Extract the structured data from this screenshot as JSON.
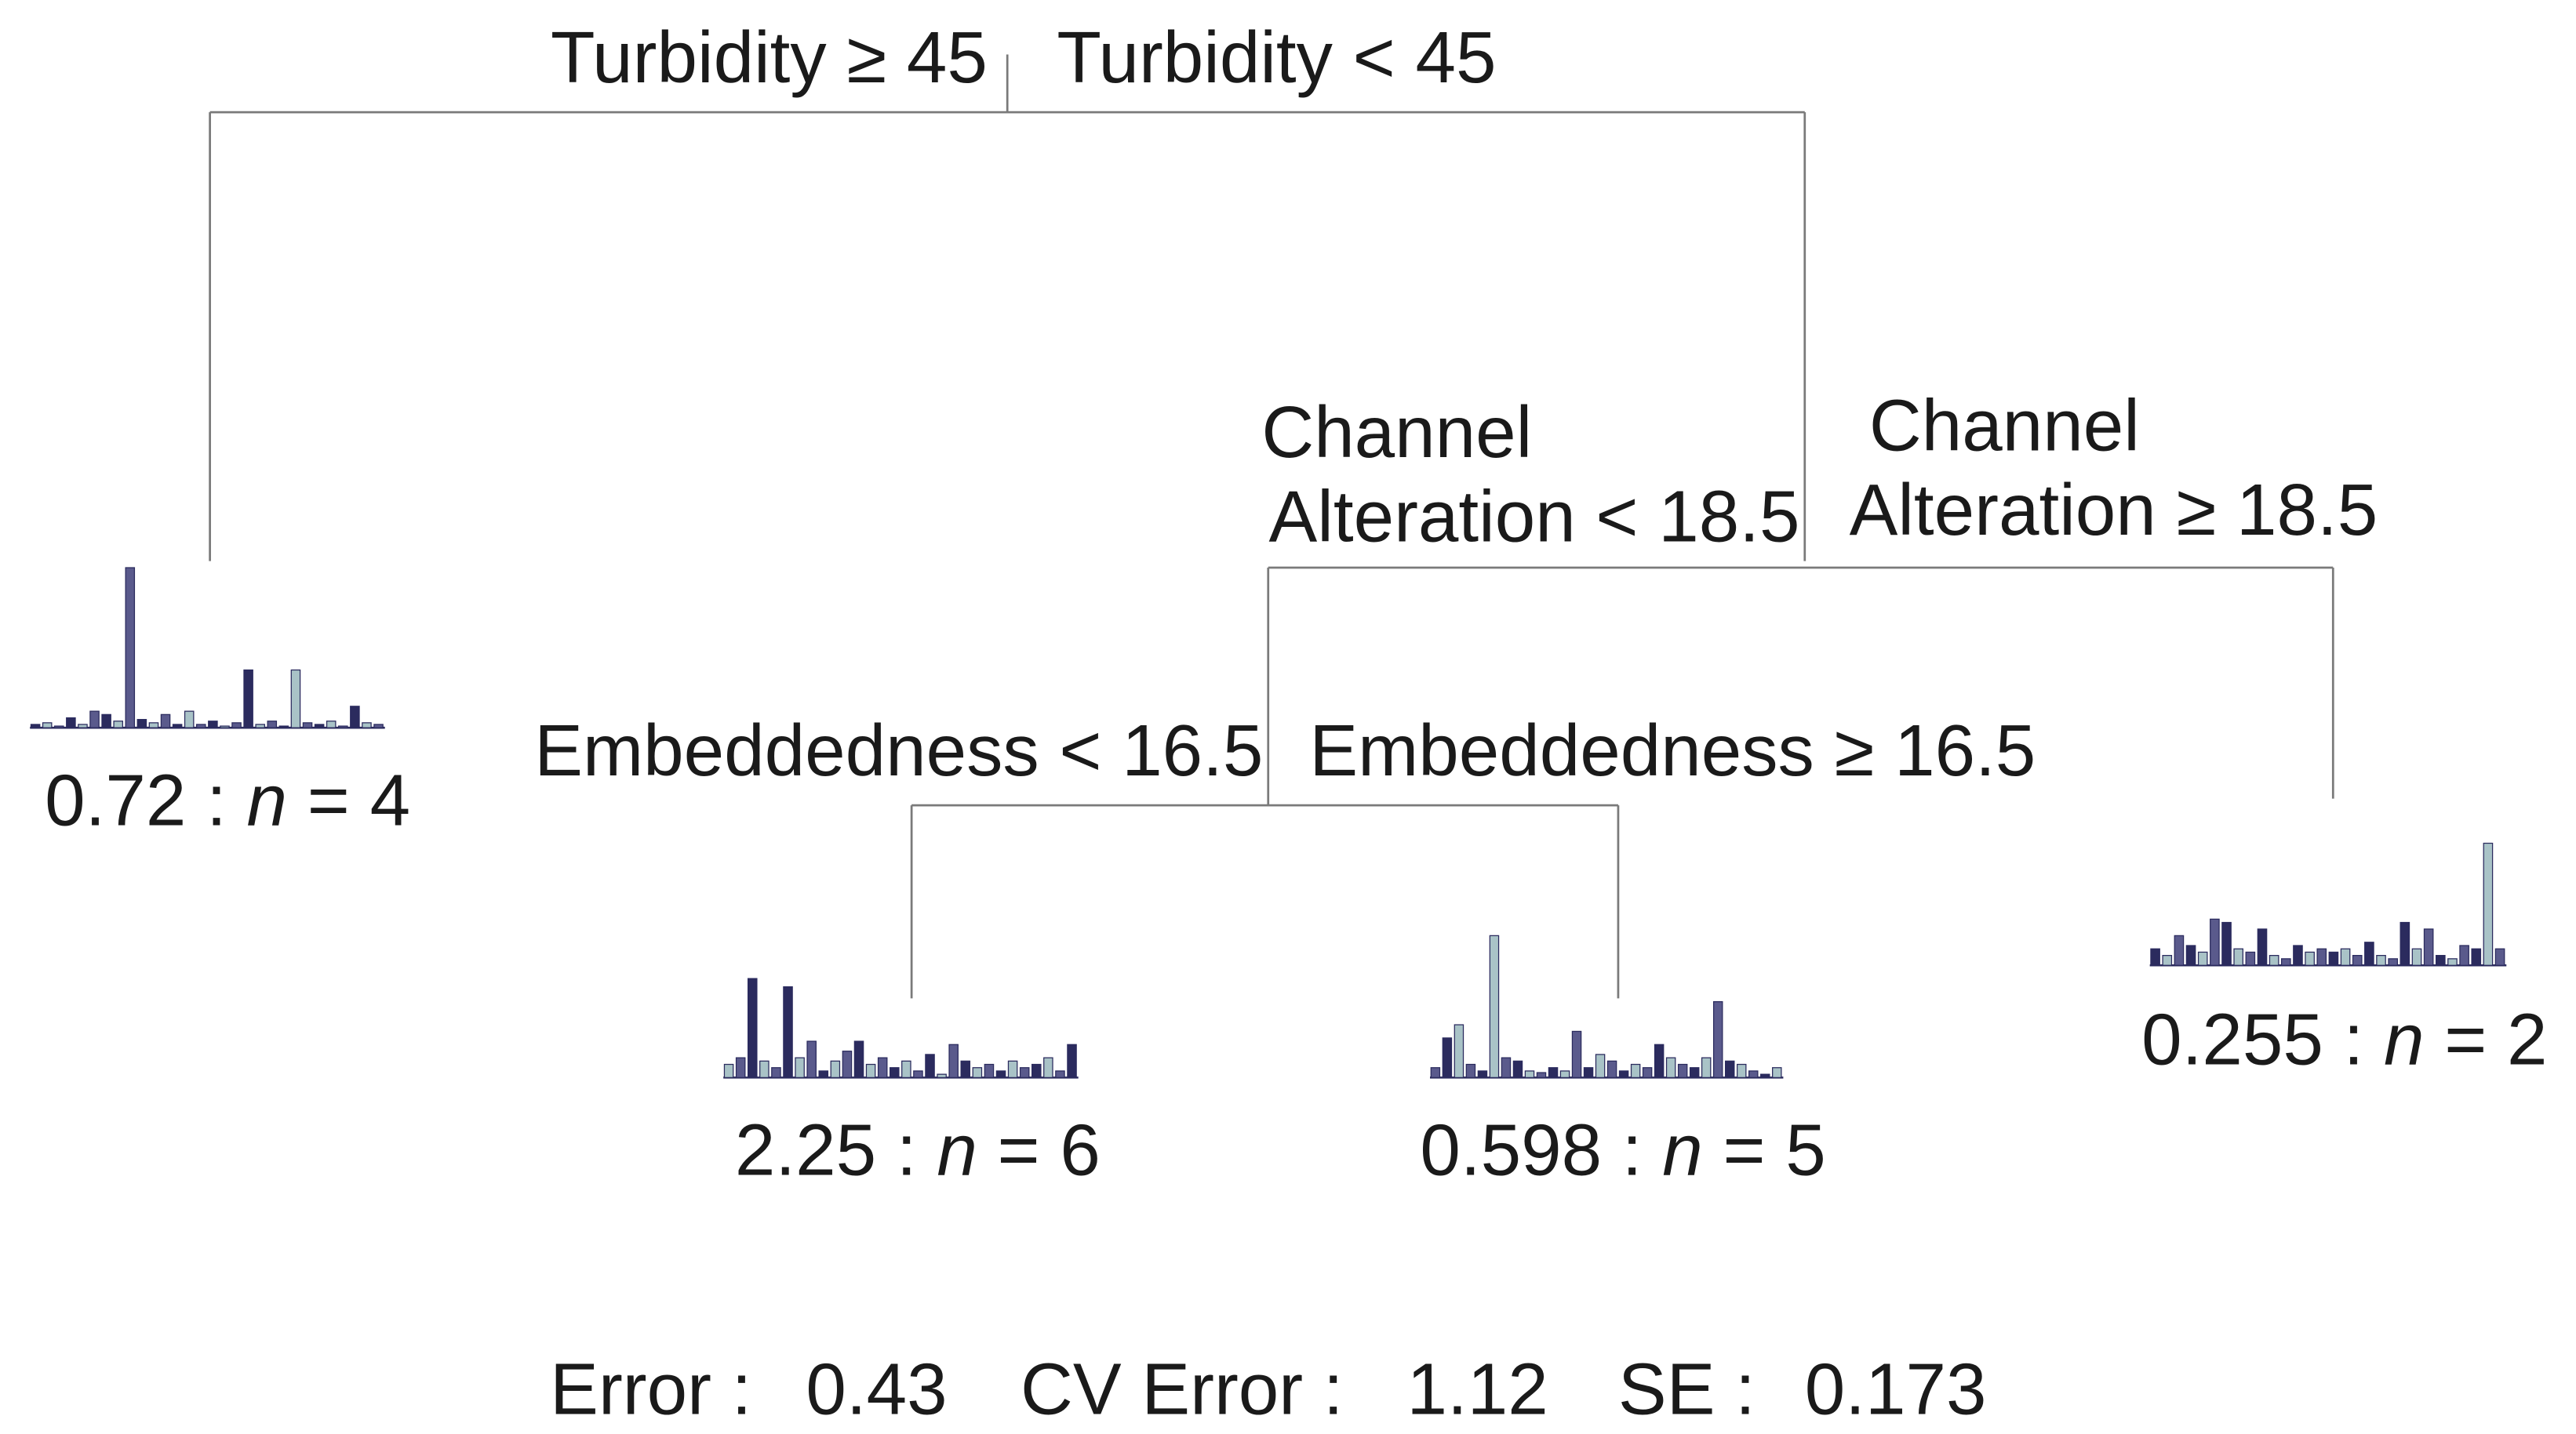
{
  "splits": [
    {
      "left": "Turbidity ≥ 45",
      "right": "Turbidity < 45"
    },
    {
      "left": [
        "Channel",
        "Alteration < 18.5"
      ],
      "right": [
        "Channel",
        "Alteration ≥ 18.5"
      ]
    },
    {
      "left": "Embeddedness < 16.5",
      "right": "Embeddedness ≥ 16.5"
    }
  ],
  "histogram_colors": [
    "#2b2b5e",
    "#a9c3c7",
    "#5a5a8c"
  ],
  "leaves": [
    {
      "label_parts": [
        "0.72 : ",
        "n",
        " = 4"
      ],
      "histogram": [
        2,
        3,
        1,
        6,
        2,
        10,
        8,
        4,
        97,
        5,
        3,
        8,
        2,
        10,
        2,
        4,
        1,
        3,
        35,
        2,
        4,
        1,
        35,
        3,
        2,
        4,
        1,
        13,
        3,
        2
      ]
    },
    {
      "label_parts": [
        "2.25 : ",
        "n",
        " = 6"
      ],
      "histogram": [
        8,
        12,
        60,
        10,
        6,
        55,
        12,
        22,
        4,
        10,
        16,
        22,
        8,
        12,
        6,
        10,
        4,
        14,
        2,
        20,
        10,
        6,
        8,
        4,
        10,
        6,
        8,
        12,
        4,
        20
      ]
    },
    {
      "label_parts": [
        "0.598 : ",
        "n",
        " = 5"
      ],
      "histogram": [
        6,
        24,
        32,
        8,
        4,
        86,
        12,
        10,
        4,
        3,
        6,
        4,
        28,
        6,
        14,
        10,
        4,
        8,
        6,
        20,
        12,
        8,
        6,
        12,
        46,
        10,
        8,
        4,
        2,
        6
      ]
    },
    {
      "label_parts": [
        "0.255 : ",
        "n",
        " = 2"
      ],
      "histogram": [
        10,
        6,
        18,
        12,
        8,
        28,
        26,
        10,
        8,
        22,
        6,
        4,
        12,
        8,
        10,
        8,
        10,
        6,
        14,
        6,
        4,
        26,
        10,
        22,
        6,
        4,
        12,
        10,
        74,
        10
      ]
    }
  ],
  "footer": [
    {
      "label": "Error :",
      "value": "0.43"
    },
    {
      "label": "CV Error :",
      "value": "1.12"
    },
    {
      "label": "SE :",
      "value": "0.173"
    }
  ]
}
